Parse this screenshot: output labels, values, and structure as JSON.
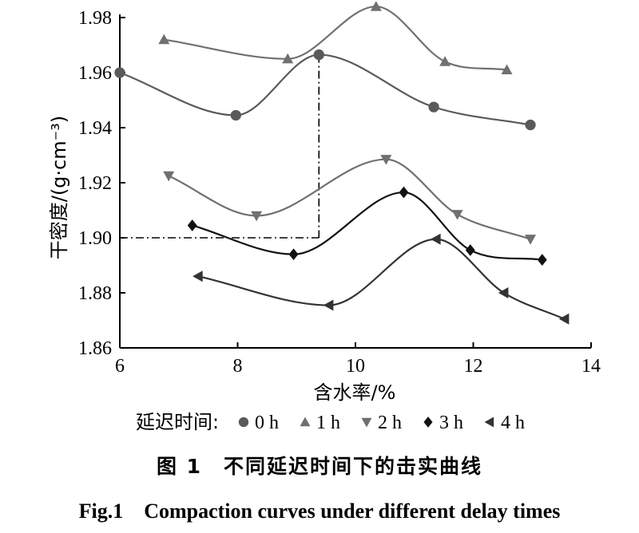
{
  "chart_data": {
    "type": "line",
    "xlabel": "含水率/%",
    "ylabel": "干密度/(g·cm⁻³)",
    "xlim": [
      6,
      14
    ],
    "ylim": [
      1.86,
      1.98
    ],
    "xticks": [
      6,
      8,
      10,
      12,
      14
    ],
    "yticks": [
      1.86,
      1.88,
      1.9,
      1.92,
      1.94,
      1.96,
      1.98
    ],
    "xtick_labels": [
      "6",
      "8",
      "10",
      "12",
      "14"
    ],
    "ytick_labels": [
      "1.86",
      "1.88",
      "1.90",
      "1.92",
      "1.94",
      "1.96",
      "1.98"
    ],
    "grid": false,
    "legend_title": "延迟时间:",
    "legend_position": "bottom",
    "series": [
      {
        "name": "0 h",
        "marker": "circle",
        "color": "#5a5a5a",
        "x": [
          6.0,
          7.97,
          9.38,
          11.33,
          12.97
        ],
        "y": [
          1.96,
          1.9445,
          1.9665,
          1.9475,
          1.941
        ]
      },
      {
        "name": "1 h",
        "marker": "triangle-up",
        "color": "#707070",
        "x": [
          6.75,
          8.85,
          10.35,
          11.52,
          12.57
        ],
        "y": [
          1.972,
          1.965,
          1.984,
          1.964,
          1.961
        ]
      },
      {
        "name": "2 h",
        "marker": "triangle-down",
        "color": "#707070",
        "x": [
          6.83,
          8.32,
          10.52,
          11.73,
          12.97
        ],
        "y": [
          1.9225,
          1.908,
          1.9285,
          1.9085,
          1.8995
        ]
      },
      {
        "name": "3 h",
        "marker": "diamond",
        "color": "#111111",
        "x": [
          7.23,
          8.95,
          10.82,
          11.95,
          13.17
        ],
        "y": [
          1.9045,
          1.894,
          1.9165,
          1.8955,
          1.892
        ]
      },
      {
        "name": "4 h",
        "marker": "triangle-left",
        "color": "#333333",
        "x": [
          7.33,
          9.55,
          11.37,
          12.52,
          13.55
        ],
        "y": [
          1.886,
          1.8755,
          1.8995,
          1.88,
          1.8705
        ]
      }
    ],
    "annotation": {
      "type": "dash-dot-guide",
      "x": 9.38,
      "y": 1.9
    }
  },
  "captions": {
    "cn": "图 1　不同延迟时间下的击实曲线",
    "en": "Fig.1　Compaction curves under different delay times"
  }
}
